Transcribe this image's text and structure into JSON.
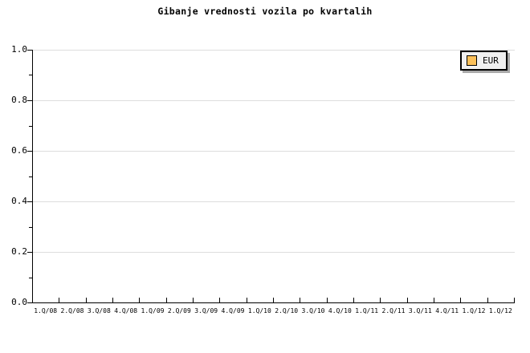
{
  "title": "Gibanje vrednosti vozila po kvartalih",
  "legend": {
    "position": "top-right",
    "items": [
      {
        "label": "EUR",
        "swatch_color": "#fbc05a"
      }
    ]
  },
  "chart_data": {
    "type": "line",
    "title": "Gibanje vrednosti vozila po kvartalih",
    "xlabel": "",
    "ylabel": "",
    "categories": [
      "1.Q/08",
      "2.Q/08",
      "3.Q/08",
      "4.Q/08",
      "1.Q/09",
      "2.Q/09",
      "3.Q/09",
      "4.Q/09",
      "1.Q/10",
      "2.Q/10",
      "3.Q/10",
      "4.Q/10",
      "1.Q/11",
      "2.Q/11",
      "3.Q/11",
      "4.Q/11",
      "1.Q/12",
      "1.Q/12"
    ],
    "series": [
      {
        "name": "EUR",
        "values": []
      }
    ],
    "ylim": [
      0.0,
      1.0
    ],
    "y_major_ticks": [
      0.0,
      0.2,
      0.4,
      0.6,
      0.8,
      1.0
    ],
    "y_major_tick_labels": [
      "0.0",
      "0.2",
      "0.4",
      "0.6",
      "0.8",
      "1.0"
    ],
    "y_minor_ticks": [
      0.1,
      0.3,
      0.5,
      0.7,
      0.9
    ],
    "grid": "horizontal-major-only",
    "legend_position": "top-right"
  },
  "colors": {
    "background": "#ffffff",
    "axis": "#000000",
    "text": "#000000",
    "gridline": "#dddddd",
    "legend_background": "#f0f0f0",
    "legend_border": "#000000",
    "legend_shadow": "#aaaaaa",
    "series_eur_swatch": "#fbc05a"
  }
}
